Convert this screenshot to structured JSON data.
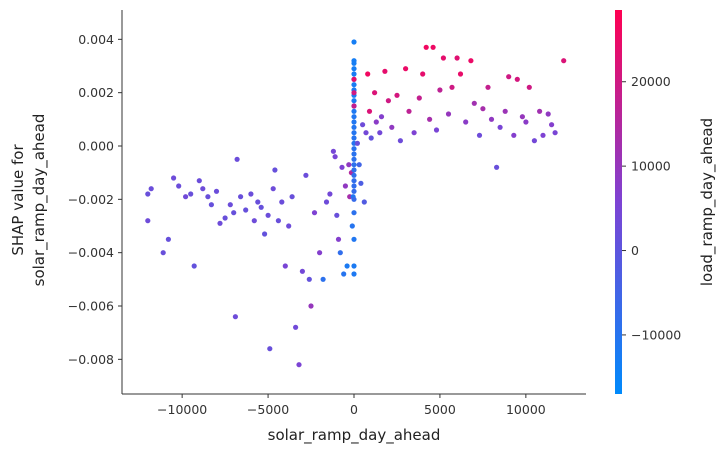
{
  "chart_data": {
    "type": "scatter",
    "title": "",
    "xlabel": "solar_ramp_day_ahead",
    "ylabel_lines": [
      "SHAP value for",
      "solar_ramp_day_ahead"
    ],
    "xlim": [
      -13500,
      13500
    ],
    "ylim": [
      -0.0093,
      0.0051
    ],
    "x_ticks": [
      {
        "value": -10000,
        "label": "−10000"
      },
      {
        "value": -5000,
        "label": "−5000"
      },
      {
        "value": 0,
        "label": "0"
      },
      {
        "value": 5000,
        "label": "5000"
      },
      {
        "value": 10000,
        "label": "10000"
      }
    ],
    "y_ticks": [
      {
        "value": 0.004,
        "label": "0.004"
      },
      {
        "value": 0.002,
        "label": "0.002"
      },
      {
        "value": 0.0,
        "label": "0.000"
      },
      {
        "value": -0.002,
        "label": "−0.002"
      },
      {
        "value": -0.004,
        "label": "−0.004"
      },
      {
        "value": -0.006,
        "label": "−0.006"
      },
      {
        "value": -0.008,
        "label": "−0.008"
      }
    ],
    "grid": false,
    "colorbar": {
      "label": "load_ramp_day_ahead",
      "range": [
        -17000,
        28500
      ],
      "colors": [
        "#008afb",
        "#7d43d4",
        "#ff0052"
      ],
      "ticks": [
        {
          "value": 20000,
          "label": "20000"
        },
        {
          "value": 10000,
          "label": "10000"
        },
        {
          "value": 0,
          "label": "0"
        },
        {
          "value": -10000,
          "label": "−10000"
        }
      ]
    },
    "points": [
      [
        -12000,
        -0.0018,
        2000
      ],
      [
        -11800,
        -0.0016,
        2500
      ],
      [
        -12000,
        -0.0028,
        3000
      ],
      [
        -11100,
        -0.004,
        2000
      ],
      [
        -10800,
        -0.0035,
        1500
      ],
      [
        -10500,
        -0.0012,
        3000
      ],
      [
        -10200,
        -0.0015,
        2500
      ],
      [
        -9800,
        -0.0019,
        3500
      ],
      [
        -9500,
        -0.0018,
        2000
      ],
      [
        -9300,
        -0.0045,
        1000
      ],
      [
        -9000,
        -0.0013,
        2500
      ],
      [
        -8800,
        -0.0016,
        3000
      ],
      [
        -8500,
        -0.0019,
        2000
      ],
      [
        -8300,
        -0.0022,
        1500
      ],
      [
        -8000,
        -0.0017,
        2500
      ],
      [
        -7800,
        -0.0029,
        3000
      ],
      [
        -7500,
        -0.0027,
        2000
      ],
      [
        -7200,
        -0.0022,
        2500
      ],
      [
        -7000,
        -0.0025,
        1500
      ],
      [
        -6900,
        -0.0064,
        3000
      ],
      [
        -6800,
        -0.0005,
        2500
      ],
      [
        -6600,
        -0.0019,
        2000
      ],
      [
        -6300,
        -0.0024,
        1500
      ],
      [
        -6000,
        -0.0018,
        2500
      ],
      [
        -5800,
        -0.0028,
        3000
      ],
      [
        -5600,
        -0.0021,
        2000
      ],
      [
        -5400,
        -0.0023,
        1500
      ],
      [
        -5200,
        -0.0033,
        1000
      ],
      [
        -5000,
        -0.0026,
        2500
      ],
      [
        -4900,
        -0.0076,
        2000
      ],
      [
        -4700,
        -0.0016,
        3000
      ],
      [
        -4600,
        -0.0009,
        1500
      ],
      [
        -4400,
        -0.0028,
        2000
      ],
      [
        -4200,
        -0.0021,
        2500
      ],
      [
        -4000,
        -0.0045,
        5000
      ],
      [
        -3800,
        -0.003,
        3000
      ],
      [
        -3600,
        -0.0019,
        2000
      ],
      [
        -3400,
        -0.0068,
        3500
      ],
      [
        -3200,
        -0.0082,
        5500
      ],
      [
        -3000,
        -0.0047,
        4000
      ],
      [
        -2800,
        -0.0011,
        2500
      ],
      [
        -2600,
        -0.005,
        1000
      ],
      [
        -2500,
        -0.006,
        10000
      ],
      [
        -2300,
        -0.0025,
        6000
      ],
      [
        -2000,
        -0.004,
        7000
      ],
      [
        -1800,
        -0.005,
        -9000
      ],
      [
        -1600,
        -0.0021,
        3000
      ],
      [
        -1400,
        -0.0018,
        4000
      ],
      [
        -1200,
        -0.0002,
        4500
      ],
      [
        -1100,
        -0.0004,
        5000
      ],
      [
        -1000,
        -0.0026,
        2000
      ],
      [
        -900,
        -0.0035,
        7000
      ],
      [
        -800,
        -0.004,
        -8000
      ],
      [
        -700,
        -0.0008,
        6000
      ],
      [
        -600,
        -0.0048,
        -10000
      ],
      [
        -500,
        -0.0015,
        9000
      ],
      [
        -400,
        -0.0045,
        -12000
      ],
      [
        -300,
        -0.0007,
        9000
      ],
      [
        -250,
        -0.0019,
        13000
      ],
      [
        -150,
        -0.001,
        15000
      ],
      [
        -100,
        -0.003,
        -10000
      ],
      [
        -50,
        -0.0019,
        -11000
      ],
      [
        0,
        0.0039,
        -13000
      ],
      [
        0,
        0.0032,
        -13000
      ],
      [
        0,
        0.0031,
        -13000
      ],
      [
        0,
        0.0029,
        -13000
      ],
      [
        0,
        0.0027,
        -12500
      ],
      [
        0,
        0.0025,
        -12500
      ],
      [
        0,
        0.0023,
        -12500
      ],
      [
        0,
        0.0021,
        -12000
      ],
      [
        0,
        0.0019,
        -12000
      ],
      [
        0,
        0.0017,
        -12000
      ],
      [
        0,
        0.0015,
        -11500
      ],
      [
        0,
        0.0013,
        -11500
      ],
      [
        0,
        0.0011,
        -11000
      ],
      [
        0,
        0.0009,
        -11000
      ],
      [
        0,
        0.0007,
        -10500
      ],
      [
        0,
        0.0005,
        -10500
      ],
      [
        0,
        0.0003,
        -10000
      ],
      [
        0,
        0.0001,
        -10000
      ],
      [
        0,
        -0.0001,
        -9500
      ],
      [
        0,
        -0.0003,
        -9500
      ],
      [
        0,
        -0.0005,
        -9000
      ],
      [
        0,
        -0.0007,
        -9000
      ],
      [
        0,
        -0.0009,
        -8500
      ],
      [
        0,
        -0.0011,
        -8500
      ],
      [
        0,
        -0.0013,
        -8000
      ],
      [
        0,
        -0.0015,
        -8000
      ],
      [
        0,
        -0.0017,
        -7500
      ],
      [
        0,
        -0.002,
        -7000
      ],
      [
        0,
        -0.0025,
        -9000
      ],
      [
        0,
        -0.0035,
        -11000
      ],
      [
        0,
        -0.0045,
        -12000
      ],
      [
        0,
        -0.0048,
        -11500
      ],
      [
        0,
        0.0025,
        24000
      ],
      [
        0,
        0.002,
        20000
      ],
      [
        0,
        0.0015,
        18000
      ],
      [
        200,
        0.0001,
        2000
      ],
      [
        300,
        -0.0007,
        -5000
      ],
      [
        400,
        -0.0014,
        -3000
      ],
      [
        500,
        0.0008,
        3000
      ],
      [
        600,
        -0.0021,
        -2000
      ],
      [
        700,
        0.0005,
        4000
      ],
      [
        800,
        0.0027,
        26000
      ],
      [
        900,
        0.0013,
        22000
      ],
      [
        1000,
        0.0003,
        1000
      ],
      [
        1200,
        0.002,
        22000
      ],
      [
        1300,
        0.0009,
        8000
      ],
      [
        1500,
        0.0005,
        4000
      ],
      [
        1600,
        0.0011,
        7000
      ],
      [
        1800,
        0.0028,
        24000
      ],
      [
        2000,
        0.0017,
        20000
      ],
      [
        2200,
        0.0007,
        9000
      ],
      [
        2500,
        0.0019,
        21000
      ],
      [
        2700,
        0.0002,
        3000
      ],
      [
        3000,
        0.0029,
        25000
      ],
      [
        3200,
        0.0013,
        17000
      ],
      [
        3500,
        0.0005,
        6000
      ],
      [
        3800,
        0.0018,
        18000
      ],
      [
        4000,
        0.0027,
        24000
      ],
      [
        4200,
        0.0037,
        26000
      ],
      [
        4400,
        0.001,
        13000
      ],
      [
        4600,
        0.0037,
        25500
      ],
      [
        4800,
        0.0006,
        5000
      ],
      [
        5000,
        0.0021,
        17000
      ],
      [
        5200,
        0.0033,
        24000
      ],
      [
        5500,
        0.0012,
        10000
      ],
      [
        5700,
        0.0022,
        20000
      ],
      [
        6000,
        0.0033,
        23000
      ],
      [
        6200,
        0.0027,
        24500
      ],
      [
        6500,
        0.0009,
        8000
      ],
      [
        6800,
        0.0032,
        25000
      ],
      [
        7000,
        0.0016,
        12000
      ],
      [
        7300,
        0.0004,
        3000
      ],
      [
        7500,
        0.0014,
        13000
      ],
      [
        7800,
        0.0022,
        18000
      ],
      [
        8000,
        0.001,
        9000
      ],
      [
        8300,
        -0.0008,
        2000
      ],
      [
        8500,
        0.0007,
        5000
      ],
      [
        8800,
        0.0013,
        11000
      ],
      [
        9000,
        0.0026,
        20000
      ],
      [
        9300,
        0.0004,
        7000
      ],
      [
        9500,
        0.0025,
        21000
      ],
      [
        9800,
        0.0011,
        10000
      ],
      [
        10000,
        0.0009,
        8000
      ],
      [
        10200,
        0.0022,
        20000
      ],
      [
        10500,
        0.0002,
        4000
      ],
      [
        10800,
        0.0013,
        12000
      ],
      [
        11000,
        0.0004,
        6000
      ],
      [
        11300,
        0.0012,
        9000
      ],
      [
        11500,
        0.0008,
        7000
      ],
      [
        11700,
        0.0005,
        5000
      ],
      [
        12200,
        0.0032,
        22000
      ]
    ]
  }
}
